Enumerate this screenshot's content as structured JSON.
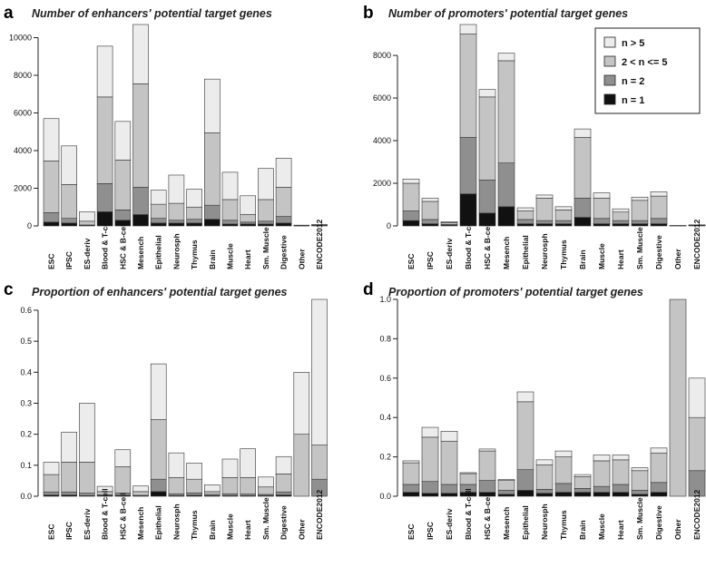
{
  "colors": {
    "n1": "#111111",
    "n2": "#8f8f8f",
    "n3": "#c4c4c4",
    "n4": "#ececec",
    "stroke": "#333333"
  },
  "legend": {
    "stack_order": [
      "n1",
      "n2",
      "n3",
      "n4"
    ],
    "items": [
      {
        "label": "n > 5",
        "color_key": "n4"
      },
      {
        "label": "2 < n <= 5",
        "color_key": "n3"
      },
      {
        "label": "n = 2",
        "color_key": "n2"
      },
      {
        "label": "n = 1",
        "color_key": "n1"
      }
    ]
  },
  "chart_data": [
    {
      "type": "bar",
      "stacked": true,
      "letter": "a",
      "title": "Number of enhancers' potential target genes",
      "categories": [
        "ESC",
        "IPSC",
        "ES-deriv",
        "Blood & T-cell",
        "HSC & B-cell",
        "Mesench",
        "Epithelial",
        "Neurosph",
        "Thymus",
        "Brain",
        "Muscle",
        "Heart",
        "Sm. Muscle",
        "Digestive",
        "Other",
        "ENCODE2012"
      ],
      "series": [
        {
          "name": "n = 1",
          "values": [
            200,
            150,
            20,
            750,
            300,
            600,
            150,
            150,
            150,
            350,
            100,
            100,
            100,
            150,
            5,
            10
          ]
        },
        {
          "name": "n = 2",
          "values": [
            500,
            250,
            30,
            1500,
            550,
            1450,
            250,
            150,
            200,
            750,
            200,
            100,
            150,
            350,
            5,
            10
          ]
        },
        {
          "name": "2 < n <= 5",
          "values": [
            2750,
            1800,
            200,
            4600,
            2650,
            5500,
            750,
            900,
            650,
            3850,
            1100,
            400,
            1150,
            1550,
            10,
            20
          ]
        },
        {
          "name": "n > 5",
          "values": [
            2250,
            2050,
            500,
            2700,
            2050,
            3150,
            750,
            1500,
            950,
            2850,
            1450,
            1000,
            1650,
            1550,
            20,
            40
          ]
        }
      ],
      "totals": [
        5700,
        4250,
        750,
        9550,
        5550,
        10700,
        1900,
        2700,
        1950,
        7800,
        2850,
        1600,
        3050,
        3600,
        40,
        80
      ],
      "ylim": [
        0,
        10700
      ],
      "yticks": [
        0,
        2000,
        4000,
        6000,
        8000,
        10000
      ],
      "ytick_labels": [
        "0",
        "2000",
        "4000",
        "6000",
        "8000",
        "10000"
      ],
      "xlabel": "",
      "ylabel": ""
    },
    {
      "type": "bar",
      "stacked": true,
      "letter": "b",
      "title": "Number of promoters' potential target genes",
      "categories": [
        "ESC",
        "IPSC",
        "ES-deriv",
        "Blood & T-cell",
        "HSC & B-cell",
        "Mesench",
        "Epithelial",
        "Neurosph",
        "Thymus",
        "Brain",
        "Muscle",
        "Heart",
        "Sm. Muscle",
        "Digestive",
        "Other",
        "ENCODE2012"
      ],
      "series": [
        {
          "name": "n = 1",
          "values": [
            250,
            100,
            30,
            1500,
            600,
            900,
            100,
            100,
            100,
            400,
            100,
            100,
            100,
            100,
            5,
            10
          ]
        },
        {
          "name": "n = 2",
          "values": [
            450,
            200,
            40,
            2650,
            1550,
            2050,
            200,
            150,
            150,
            900,
            250,
            150,
            150,
            250,
            5,
            10
          ]
        },
        {
          "name": "2 < n <= 5",
          "values": [
            1300,
            850,
            80,
            4850,
            3900,
            4800,
            400,
            1050,
            500,
            2850,
            950,
            400,
            950,
            1050,
            5,
            15
          ]
        },
        {
          "name": "n > 5",
          "values": [
            200,
            150,
            50,
            450,
            350,
            350,
            150,
            150,
            150,
            400,
            250,
            150,
            150,
            200,
            5,
            15
          ]
        }
      ],
      "totals": [
        2200,
        1300,
        200,
        9450,
        6400,
        8100,
        850,
        1450,
        900,
        4550,
        1550,
        800,
        1350,
        1600,
        20,
        50
      ],
      "ylim": [
        0,
        9450
      ],
      "yticks": [
        0,
        2000,
        4000,
        6000,
        8000
      ],
      "ytick_labels": [
        "0",
        "2000",
        "4000",
        "6000",
        "8000"
      ],
      "xlabel": "",
      "ylabel": ""
    },
    {
      "type": "bar",
      "stacked": true,
      "letter": "c",
      "title": "Proportion of enhancers' potential target genes",
      "categories": [
        "ESC",
        "IPSC",
        "ES-deriv",
        "Blood & T-cell",
        "HSC & B-cell",
        "Mesench",
        "Epithelial",
        "Neurosph",
        "Thymus",
        "Brain",
        "Muscle",
        "Heart",
        "Sm. Muscle",
        "Digestive",
        "Other",
        "ENCODE2012"
      ],
      "series": [
        {
          "name": "n = 1",
          "values": [
            0.004,
            0.004,
            0.002,
            0.002,
            0.003,
            0.001,
            0.015,
            0.002,
            0.003,
            0.002,
            0.002,
            0.002,
            0.002,
            0.004,
            0.0,
            0.0
          ]
        },
        {
          "name": "n = 2",
          "values": [
            0.01,
            0.01,
            0.008,
            0.003,
            0.007,
            0.002,
            0.04,
            0.006,
            0.008,
            0.004,
            0.006,
            0.005,
            0.004,
            0.01,
            0.0,
            0.055
          ]
        },
        {
          "name": "2 < n <= 5",
          "values": [
            0.056,
            0.096,
            0.1,
            0.01,
            0.085,
            0.012,
            0.192,
            0.052,
            0.044,
            0.009,
            0.052,
            0.053,
            0.024,
            0.058,
            0.2,
            0.11
          ]
        },
        {
          "name": "n > 5",
          "values": [
            0.04,
            0.097,
            0.19,
            0.017,
            0.055,
            0.018,
            0.18,
            0.08,
            0.052,
            0.022,
            0.06,
            0.093,
            0.032,
            0.056,
            0.2,
            0.47
          ]
        }
      ],
      "totals": [
        0.11,
        0.207,
        0.3,
        0.032,
        0.15,
        0.033,
        0.427,
        0.14,
        0.107,
        0.037,
        0.12,
        0.153,
        0.062,
        0.128,
        0.4,
        0.635
      ],
      "ylim": [
        0,
        0.635
      ],
      "yticks": [
        0.0,
        0.1,
        0.2,
        0.3,
        0.4,
        0.5,
        0.6
      ],
      "ytick_labels": [
        "0.0",
        "0.1",
        "0.2",
        "0.3",
        "0.4",
        "0.5",
        "0.6"
      ],
      "xlabel": "",
      "ylabel": ""
    },
    {
      "type": "bar",
      "stacked": true,
      "letter": "d",
      "title": "Proportion of promoters' potential target genes",
      "categories": [
        "ESC",
        "IPSC",
        "ES-deriv",
        "Blood & T-cell",
        "HSC & B-cell",
        "Mesench",
        "Epithelial",
        "Neurosph",
        "Thymus",
        "Brain",
        "Muscle",
        "Heart",
        "Sm. Muscle",
        "Digestive",
        "Other",
        "ENCODE2012"
      ],
      "series": [
        {
          "name": "n = 1",
          "values": [
            0.02,
            0.015,
            0.015,
            0.02,
            0.02,
            0.01,
            0.03,
            0.015,
            0.02,
            0.02,
            0.02,
            0.02,
            0.01,
            0.02,
            0.0,
            0.0
          ]
        },
        {
          "name": "n = 2",
          "values": [
            0.04,
            0.06,
            0.045,
            0.04,
            0.06,
            0.02,
            0.105,
            0.02,
            0.045,
            0.02,
            0.03,
            0.04,
            0.02,
            0.05,
            0.0,
            0.13
          ]
        },
        {
          "name": "2 < n <= 5",
          "values": [
            0.11,
            0.225,
            0.22,
            0.055,
            0.15,
            0.05,
            0.345,
            0.125,
            0.135,
            0.06,
            0.13,
            0.125,
            0.1,
            0.15,
            1.0,
            0.27
          ]
        },
        {
          "name": "n > 5",
          "values": [
            0.01,
            0.05,
            0.05,
            0.005,
            0.01,
            0.005,
            0.05,
            0.025,
            0.03,
            0.01,
            0.03,
            0.025,
            0.015,
            0.025,
            0.0,
            0.2
          ]
        }
      ],
      "totals": [
        0.18,
        0.35,
        0.33,
        0.12,
        0.24,
        0.085,
        0.53,
        0.185,
        0.23,
        0.11,
        0.21,
        0.21,
        0.145,
        0.245,
        1.0,
        0.6
      ],
      "ylim": [
        0,
        1.0
      ],
      "yticks": [
        0.0,
        0.2,
        0.4,
        0.6,
        0.8,
        1.0
      ],
      "ytick_labels": [
        "0.0",
        "0.2",
        "0.4",
        "0.6",
        "0.8",
        "1.0"
      ],
      "xlabel": "",
      "ylabel": ""
    }
  ]
}
